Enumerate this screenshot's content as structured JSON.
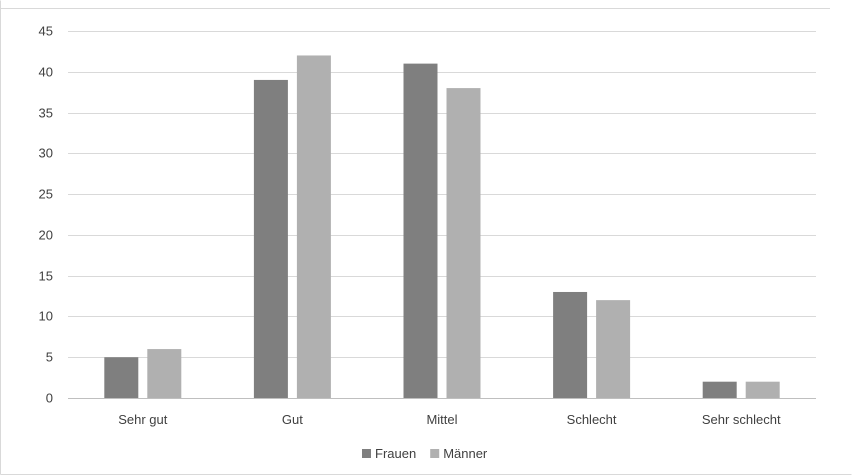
{
  "chart_data": {
    "type": "bar",
    "categories": [
      "Sehr gut",
      "Gut",
      "Mittel",
      "Schlecht",
      "Sehr schlecht"
    ],
    "series": [
      {
        "name": "Frauen",
        "values": [
          5,
          39,
          41,
          13,
          2
        ],
        "color": "#7f7f7f"
      },
      {
        "name": "Männer",
        "values": [
          6,
          42,
          38,
          12,
          2
        ],
        "color": "#b0b0b0"
      }
    ],
    "y_ticks": [
      "0",
      "5",
      "10",
      "15",
      "20",
      "25",
      "30",
      "35",
      "40",
      "45"
    ],
    "ylim": [
      0,
      45
    ],
    "grid": true,
    "legend_position": "bottom",
    "title": "",
    "xlabel": "",
    "ylabel": ""
  }
}
